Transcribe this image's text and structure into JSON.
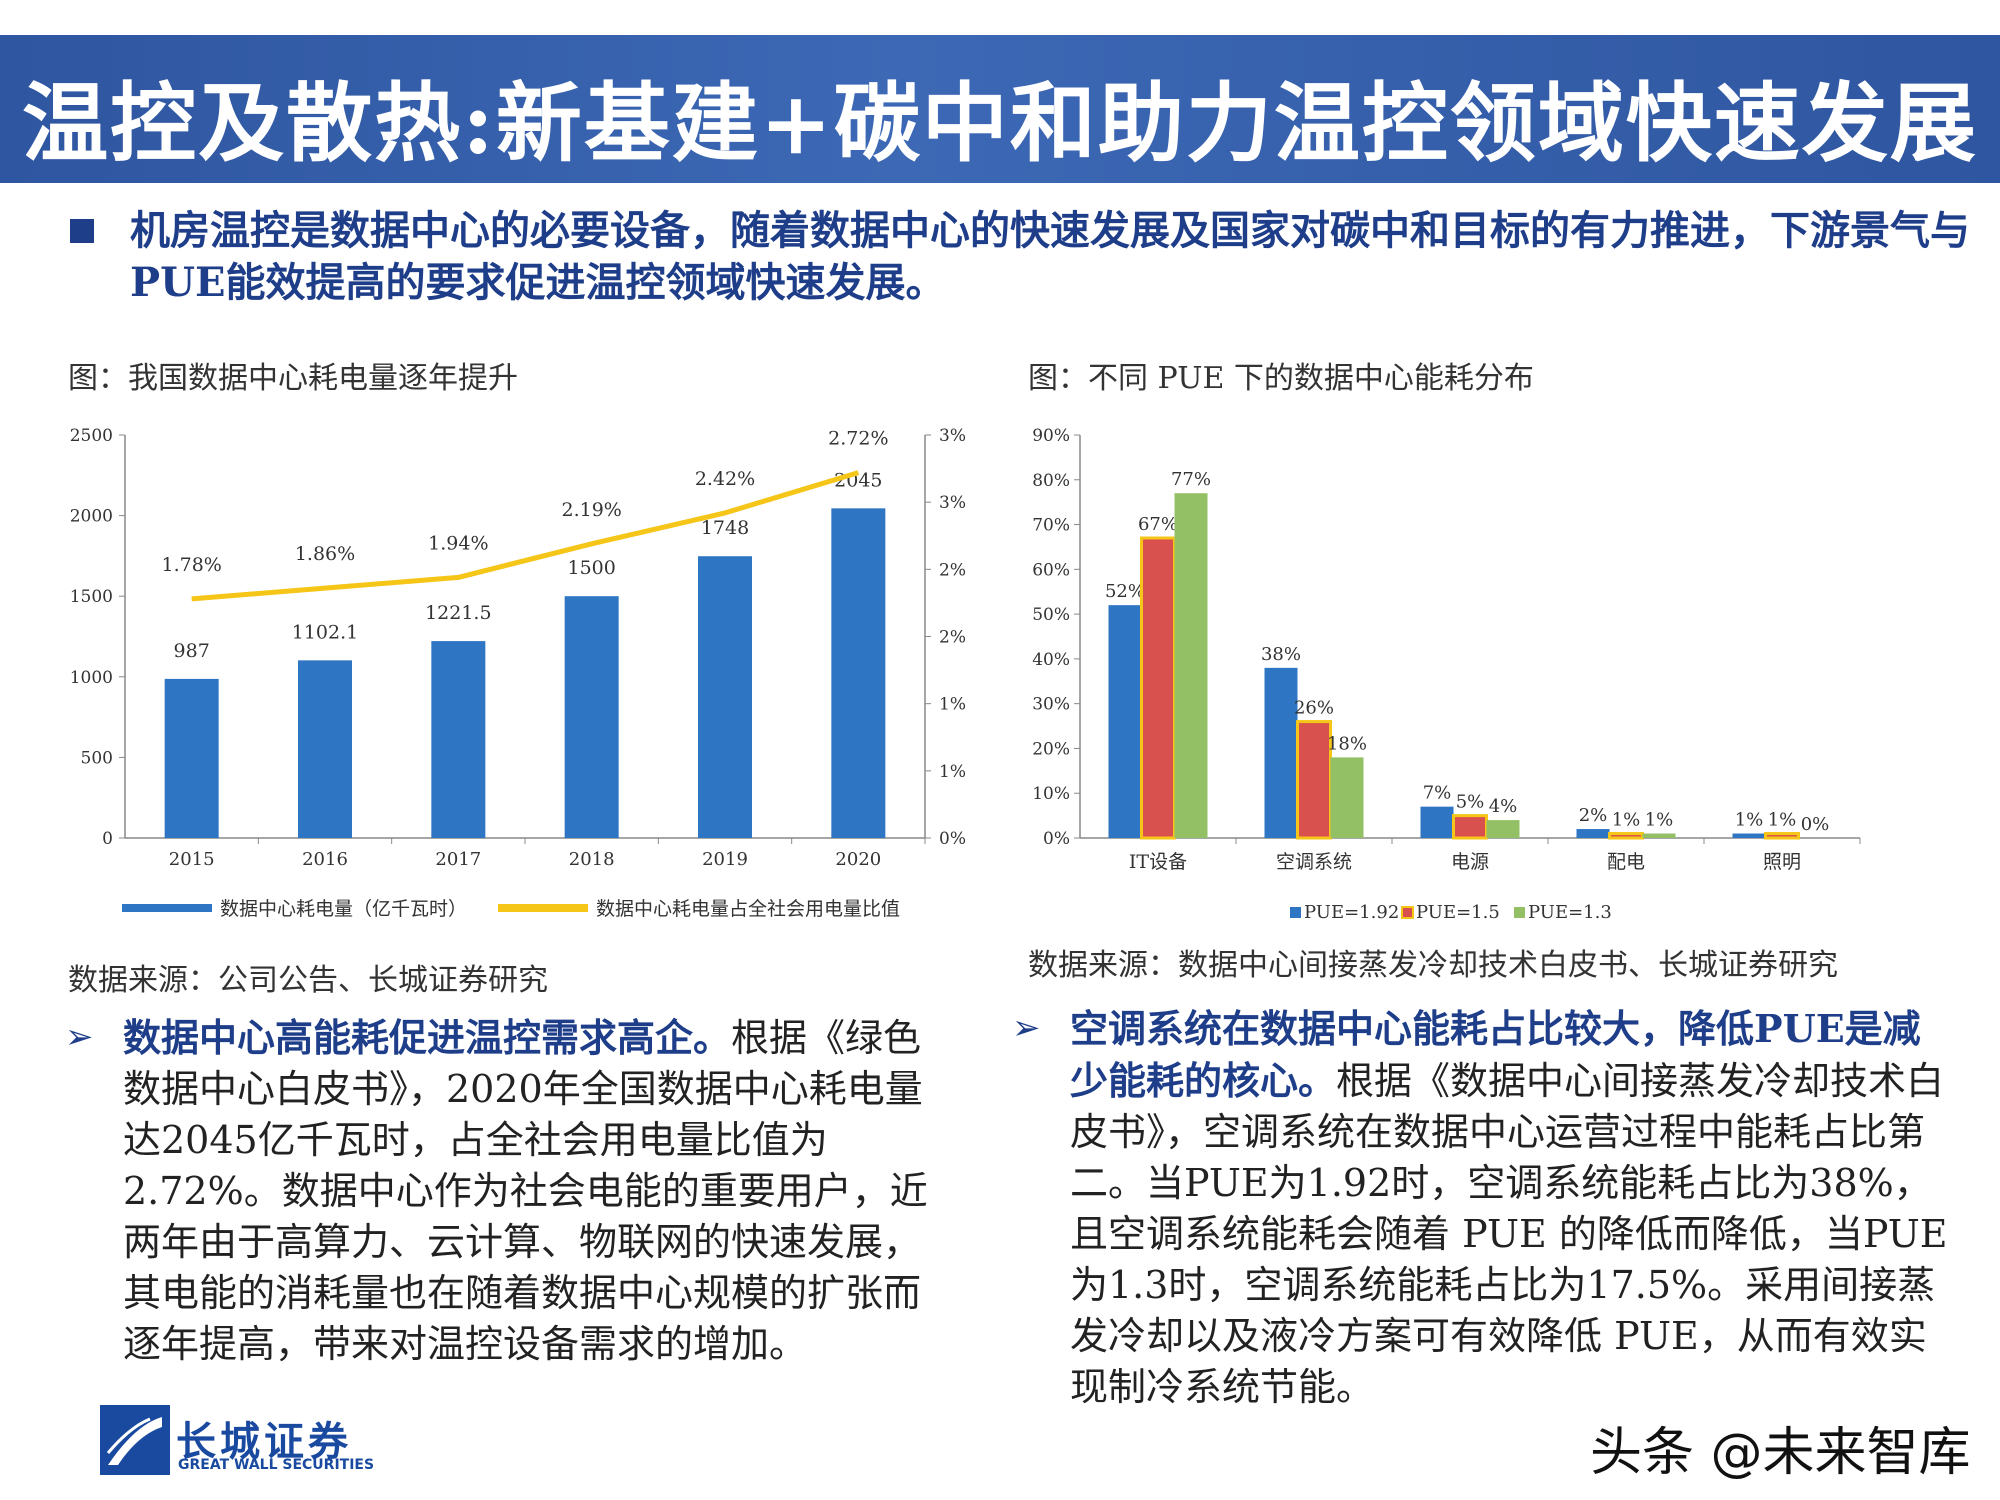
{
  "header": {
    "title": "温控及散热:新基建+碳中和助力温控领域快速发展"
  },
  "intro": {
    "text": "机房温控是数据中心的必要设备，随着数据中心的快速发展及国家对碳中和目标的有力推进，下游景气与PUE能效提高的要求促进温控领域快速发展。"
  },
  "left_panel": {
    "caption": "图：我国数据中心耗电量逐年提升",
    "source": "数据来源：公司公告、长城证券研究",
    "paragraph": {
      "lead": "数据中心高能耗促进温控需求高企。",
      "body": "根据《绿色数据中心白皮书》，2020年全国数据中心耗电量达2045亿千瓦时，占全社会用电量比值为2.72%。数据中心作为社会电能的重要用户，近两年由于高算力、云计算、物联网的快速发展，其电能的消耗量也在随着数据中心规模的扩张而逐年提高，带来对温控设备需求的增加。"
    }
  },
  "right_panel": {
    "caption": "图：不同 PUE 下的数据中心能耗分布",
    "source": "数据来源：数据中心间接蒸发冷却技术白皮书、长城证券研究",
    "paragraph": {
      "lead": "空调系统在数据中心能耗占比较大，降低PUE是减少能耗的核心。",
      "body": "根据《数据中心间接蒸发冷却技术白皮书》，空调系统在数据中心运营过程中能耗占比第二。当PUE为1.92时，空调系统能耗占比为38%，且空调系统能耗会随着 PUE 的降低而降低，当PUE为1.3时，空调系统能耗占比为17.5%。采用间接蒸发冷却以及液冷方案可有效降低 PUE，从而有效实现制冷系统节能。"
    }
  },
  "footer": {
    "logo_text": "长城证券",
    "logo_sub": "GREAT WALL SECURITIES",
    "watermark": "头条 @未来智库"
  },
  "colors": {
    "banner": "#2f56a0",
    "bar_blue": "#2e75c4",
    "line_yellow": "#f5c518",
    "pue_red": "#d9514e",
    "pue_green": "#93c064",
    "title_text": "#1f3e8a"
  },
  "chart_data": [
    {
      "type": "bar",
      "categories": [
        "2015",
        "2016",
        "2017",
        "2018",
        "2019",
        "2020"
      ],
      "series": [
        {
          "name": "数据中心耗电量（亿千瓦时）",
          "type": "bar",
          "axis": "left",
          "values": [
            987,
            1102.1,
            1221.5,
            1500,
            1748,
            2045
          ],
          "labels": [
            "987",
            "1102.1",
            "1221.5",
            "1500",
            "1748",
            "2045"
          ]
        },
        {
          "name": "数据中心耗电量占全社会用电量比值",
          "type": "line",
          "axis": "right",
          "values": [
            1.78,
            1.86,
            1.94,
            2.19,
            2.42,
            2.72
          ],
          "labels": [
            "1.78%",
            "1.86%",
            "1.94%",
            "2.19%",
            "2.42%",
            "2.72%"
          ]
        }
      ],
      "ylim": [
        0,
        2500
      ],
      "y_ticks": [
        "0",
        "500",
        "1000",
        "1500",
        "2000",
        "2500"
      ],
      "y2lim": [
        0,
        3
      ],
      "y2_ticks": [
        "0%",
        "1%",
        "1%",
        "2%",
        "2%",
        "3%",
        "3%"
      ],
      "legend": "bottom",
      "grid": false
    },
    {
      "type": "bar",
      "categories": [
        "IT设备",
        "空调系统",
        "电源",
        "配电",
        "照明"
      ],
      "series": [
        {
          "name": "PUE=1.92",
          "values": [
            52,
            38,
            7,
            2,
            1
          ],
          "labels": [
            "52%",
            "38%",
            "7%",
            "2%",
            "1%"
          ]
        },
        {
          "name": "PUE=1.5",
          "values": [
            67,
            26,
            5,
            1,
            1
          ],
          "labels": [
            "67%",
            "26%",
            "5%",
            "1%",
            "1%"
          ]
        },
        {
          "name": "PUE=1.3",
          "values": [
            77,
            18,
            4,
            1,
            0
          ],
          "labels": [
            "77%",
            "18%",
            "4%",
            "1%",
            "0%"
          ]
        }
      ],
      "ylim": [
        0,
        90
      ],
      "y_ticks": [
        "0%",
        "10%",
        "20%",
        "30%",
        "40%",
        "50%",
        "60%",
        "70%",
        "80%",
        "90%"
      ],
      "legend": "bottom",
      "grid": false
    }
  ]
}
